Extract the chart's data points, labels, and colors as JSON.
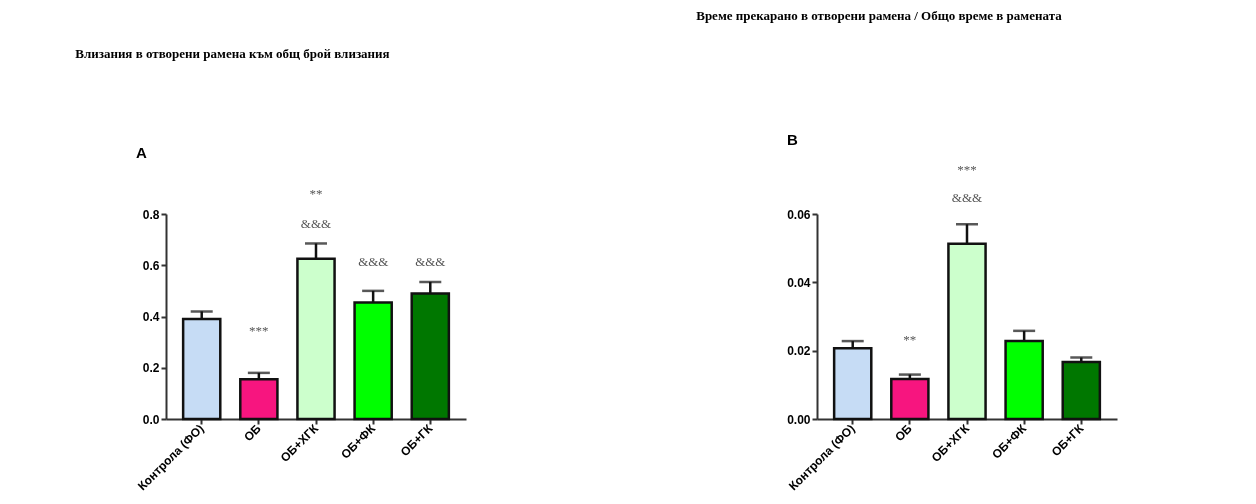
{
  "chart_data": [
    {
      "type": "bar",
      "title": "Влизания в отворени рамена към общ брой влизания",
      "categories": [
        "Контрола (ФО)",
        "ОБ",
        "ОБ+ХГК",
        "ОБ+ФК",
        "ОБ+ГК"
      ],
      "values": [
        0.39,
        0.155,
        0.625,
        0.455,
        0.49
      ],
      "colors": [
        "#c6dcf5",
        "#f7157f",
        "#ccffcc",
        "#00ff00",
        "#007700"
      ],
      "errors": [
        [
          0.39,
          0.42
        ],
        [
          0.155,
          0.18
        ],
        [
          0.625,
          0.685
        ],
        [
          0.455,
          0.5
        ],
        [
          0.49,
          0.535
        ]
      ],
      "ylim": [
        0,
        0.8
      ],
      "yticks": [
        {
          "value": 0,
          "label": "0.0"
        },
        0.2,
        0.4,
        0.6,
        0.8
      ],
      "grid": false,
      "annotations": [
        "A",
        "***",
        "**",
        "&&&",
        "&&&",
        "&&&"
      ]
    },
    {
      "type": "bar",
      "title": "Време прекарано в отворени рамена / Общо време в рамената",
      "categories": [
        "Контрола (ФО)",
        "ОБ",
        "ОБ+ХГК",
        "ОБ+ФК",
        "ОБ+ГК"
      ],
      "values": [
        0.0207,
        0.0117,
        0.0513,
        0.0228,
        0.0167
      ],
      "colors": [
        "#c6dcf5",
        "#f7157f",
        "#ccffcc",
        "#00ff00",
        "#007700"
      ],
      "errors": [
        [
          0.0207,
          0.0228
        ],
        [
          0.0117,
          0.013
        ],
        [
          0.0513,
          0.057
        ],
        [
          0.0228,
          0.0258
        ],
        [
          0.0167,
          0.018
        ]
      ],
      "ylim": [
        0,
        0.06
      ],
      "yticks": [
        {
          "value": 0,
          "label": "0.00"
        },
        0.02,
        0.04,
        0.06
      ],
      "grid": false,
      "annotations": [
        "B",
        "**",
        "***",
        "&&&"
      ]
    }
  ]
}
